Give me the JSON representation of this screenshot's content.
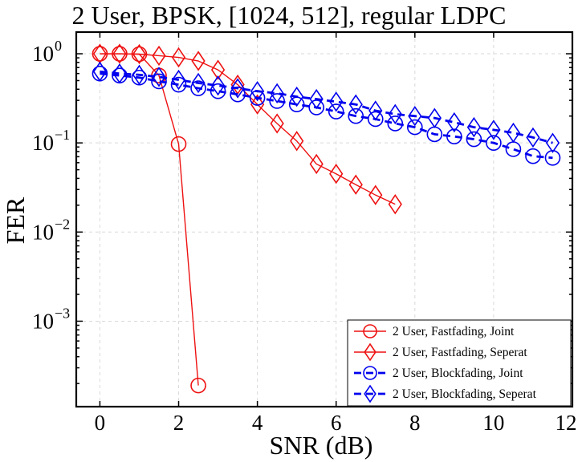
{
  "chart_data": {
    "type": "line",
    "title": "2 User, BPSK, [1024, 512], regular LDPC",
    "xlabel": "SNR (dB)",
    "ylabel": "FER",
    "xlim": [
      -0.6,
      12
    ],
    "ylim": [
      0.00011,
      1.75
    ],
    "yscale": "log",
    "grid": true,
    "legend_position": "bottom-right",
    "x_ticks": [
      0,
      2,
      4,
      6,
      8,
      10,
      12
    ],
    "y_ticks": [
      {
        "value": 1,
        "base": "10",
        "exp": "0"
      },
      {
        "value": 0.1,
        "base": "10",
        "exp": "−1"
      },
      {
        "value": 0.01,
        "base": "10",
        "exp": "−2"
      },
      {
        "value": 0.001,
        "base": "10",
        "exp": "−3"
      }
    ],
    "series": [
      {
        "name": "2 User, Fastfading, Joint",
        "color": "#ee1111",
        "marker": "circle",
        "dashed": false,
        "x": [
          0,
          0.5,
          1,
          1.5,
          2,
          2.5
        ],
        "y": [
          1.0,
          1.0,
          0.99,
          0.57,
          0.097,
          0.00019
        ]
      },
      {
        "name": "2 User, Fastfading, Seperat",
        "color": "#ee1111",
        "marker": "diamond",
        "dashed": false,
        "x": [
          0,
          0.5,
          1,
          1.5,
          2,
          2.5,
          3,
          3.5,
          4,
          4.5,
          5,
          5.5,
          6,
          6.5,
          7,
          7.5
        ],
        "y": [
          1.0,
          1.0,
          0.99,
          0.95,
          0.91,
          0.83,
          0.66,
          0.45,
          0.27,
          0.165,
          0.105,
          0.058,
          0.045,
          0.034,
          0.026,
          0.0205
        ]
      },
      {
        "name": "2 User, Blockfading, Joint",
        "color": "#0000ee",
        "marker": "circle",
        "dashed": true,
        "x": [
          0,
          0.5,
          1,
          1.5,
          2,
          2.5,
          3,
          3.5,
          4,
          4.5,
          5,
          5.5,
          6,
          6.5,
          7,
          7.5,
          8,
          8.5,
          9,
          9.5,
          10,
          10.5,
          11,
          11.5
        ],
        "y": [
          0.6,
          0.57,
          0.54,
          0.49,
          0.45,
          0.41,
          0.38,
          0.35,
          0.32,
          0.295,
          0.27,
          0.25,
          0.225,
          0.2,
          0.185,
          0.165,
          0.15,
          0.125,
          0.118,
          0.11,
          0.1,
          0.085,
          0.071,
          0.068
        ]
      },
      {
        "name": "2 User, Blockfading, Seperat",
        "color": "#0000ee",
        "marker": "diamond",
        "dashed": true,
        "x": [
          0,
          0.5,
          1,
          1.5,
          2,
          2.5,
          3,
          3.5,
          4,
          4.5,
          5,
          5.5,
          6,
          6.5,
          7,
          7.5,
          8,
          8.5,
          9,
          9.5,
          10,
          10.5,
          11,
          11.5
        ],
        "y": [
          0.63,
          0.6,
          0.58,
          0.55,
          0.51,
          0.47,
          0.44,
          0.41,
          0.38,
          0.36,
          0.33,
          0.31,
          0.29,
          0.27,
          0.23,
          0.21,
          0.2,
          0.19,
          0.17,
          0.15,
          0.14,
          0.13,
          0.115,
          0.1
        ]
      }
    ]
  }
}
